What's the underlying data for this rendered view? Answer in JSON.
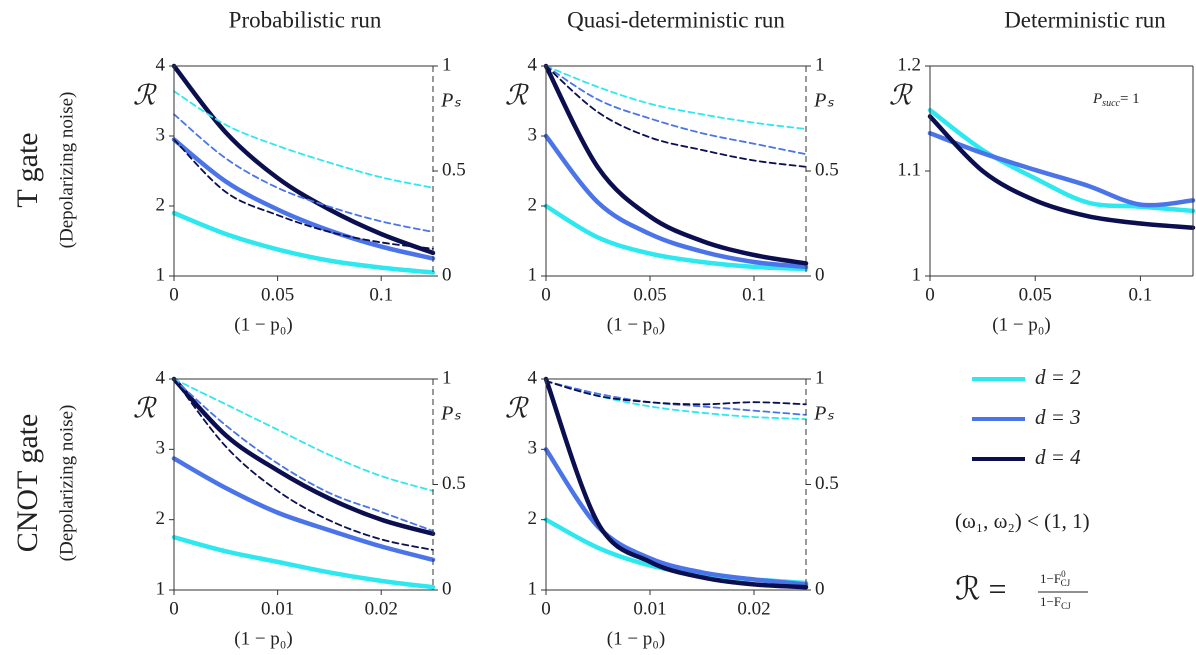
{
  "columns": [
    "Probabilistic run",
    "Quasi-deterministic run",
    "Deterministic run"
  ],
  "rows": [
    {
      "title": "T gate",
      "subtitle": "(Depolarizing noise)"
    },
    {
      "title": "CNOT gate",
      "subtitle": "(Depolarizing noise)"
    }
  ],
  "legend": [
    {
      "name": "d = 2",
      "color": "#2ee8f0"
    },
    {
      "name": "d = 3",
      "color": "#4a74e8"
    },
    {
      "name": "d = 4",
      "color": "#0b0f4f"
    }
  ],
  "condition": "(ω₁, ω₂) < (1, 1)",
  "formula": {
    "lhs": "ℛ =",
    "numerator": "1−F",
    "numerator_sup": "0",
    "numerator_sub": "CJ",
    "denominator": "1−F",
    "denominator_sub": "CJ"
  },
  "chart_data": [
    {
      "type": "line",
      "xlabel": "(1 − p₀)",
      "ylabel": "ℛ",
      "y2label": "Pₛ",
      "x": [
        0,
        0.025,
        0.05,
        0.075,
        0.1,
        0.125
      ],
      "xlim": [
        0,
        0.125
      ],
      "xticks": [
        0,
        0.05,
        0.1
      ],
      "ylim": [
        1,
        4
      ],
      "yticks": [
        1,
        2,
        3,
        4
      ],
      "y2lim": [
        0,
        1
      ],
      "y2ticks": [
        0,
        0.5,
        1
      ],
      "series": [
        {
          "color": "#2ee8f0",
          "values": [
            1.9,
            1.6,
            1.38,
            1.22,
            1.12,
            1.05
          ]
        },
        {
          "color": "#4a74e8",
          "values": [
            2.95,
            2.35,
            1.95,
            1.65,
            1.42,
            1.25
          ]
        },
        {
          "color": "#0b0f4f",
          "values": [
            4.0,
            3.05,
            2.4,
            1.95,
            1.6,
            1.33
          ]
        },
        {
          "color": "#2ee8f0",
          "axis": "y2",
          "values": [
            0.88,
            0.72,
            0.62,
            0.54,
            0.47,
            0.42
          ]
        },
        {
          "color": "#4a74e8",
          "axis": "y2",
          "values": [
            0.77,
            0.56,
            0.42,
            0.33,
            0.26,
            0.21
          ]
        },
        {
          "color": "#0b0f4f",
          "axis": "y2",
          "values": [
            0.65,
            0.4,
            0.29,
            0.21,
            0.16,
            0.13
          ]
        }
      ]
    },
    {
      "type": "line",
      "xlabel": "(1 − p₀)",
      "ylabel": "ℛ",
      "y2label": "Pₛ",
      "x": [
        0,
        0.025,
        0.05,
        0.075,
        0.1,
        0.125
      ],
      "xlim": [
        0,
        0.125
      ],
      "xticks": [
        0,
        0.05,
        0.1
      ],
      "ylim": [
        1,
        4
      ],
      "yticks": [
        1,
        2,
        3,
        4
      ],
      "y2lim": [
        0,
        1
      ],
      "y2ticks": [
        0,
        0.5,
        1
      ],
      "series": [
        {
          "color": "#2ee8f0",
          "values": [
            2.0,
            1.55,
            1.32,
            1.2,
            1.13,
            1.1
          ]
        },
        {
          "color": "#4a74e8",
          "values": [
            3.0,
            2.05,
            1.6,
            1.35,
            1.2,
            1.13
          ]
        },
        {
          "color": "#0b0f4f",
          "values": [
            4.0,
            2.55,
            1.85,
            1.5,
            1.3,
            1.18
          ]
        },
        {
          "color": "#2ee8f0",
          "axis": "y2",
          "values": [
            1.0,
            0.9,
            0.82,
            0.77,
            0.73,
            0.7
          ]
        },
        {
          "color": "#4a74e8",
          "axis": "y2",
          "values": [
            1.0,
            0.84,
            0.75,
            0.68,
            0.63,
            0.58
          ]
        },
        {
          "color": "#0b0f4f",
          "axis": "y2",
          "values": [
            1.0,
            0.78,
            0.66,
            0.6,
            0.55,
            0.52
          ]
        }
      ]
    },
    {
      "type": "line",
      "xlabel": "(1 − p₀)",
      "ylabel": "ℛ",
      "annotation": {
        "main": "P",
        "sub": "succ",
        "rest": "= 1"
      },
      "x": [
        0,
        0.025,
        0.05,
        0.075,
        0.1,
        0.125
      ],
      "xlim": [
        0,
        0.125
      ],
      "xticks": [
        0,
        0.05,
        0.1
      ],
      "ylim": [
        1,
        1.2
      ],
      "yticks": [
        1,
        1.1,
        1.2
      ],
      "series": [
        {
          "color": "#2ee8f0",
          "values": [
            1.158,
            1.12,
            1.093,
            1.07,
            1.066,
            1.062
          ]
        },
        {
          "color": "#4a74e8",
          "values": [
            1.136,
            1.117,
            1.101,
            1.086,
            1.068,
            1.072
          ]
        },
        {
          "color": "#0b0f4f",
          "values": [
            1.152,
            1.1,
            1.072,
            1.057,
            1.05,
            1.046
          ]
        }
      ]
    },
    {
      "type": "line",
      "xlabel": "(1 − p₀)",
      "ylabel": "ℛ",
      "y2label": "Pₛ",
      "x": [
        0,
        0.005,
        0.01,
        0.015,
        0.02,
        0.025
      ],
      "xlim": [
        0,
        0.025
      ],
      "xticks": [
        0,
        0.01,
        0.02
      ],
      "ylim": [
        1,
        4
      ],
      "yticks": [
        1,
        2,
        3,
        4
      ],
      "y2lim": [
        0,
        1
      ],
      "y2ticks": [
        0,
        0.5,
        1
      ],
      "series": [
        {
          "color": "#2ee8f0",
          "values": [
            1.75,
            1.55,
            1.4,
            1.25,
            1.13,
            1.04
          ]
        },
        {
          "color": "#4a74e8",
          "values": [
            2.87,
            2.45,
            2.1,
            1.85,
            1.62,
            1.43
          ]
        },
        {
          "color": "#0b0f4f",
          "values": [
            4.0,
            3.2,
            2.7,
            2.3,
            2.0,
            1.8
          ]
        },
        {
          "color": "#2ee8f0",
          "axis": "y2",
          "values": [
            1.0,
            0.88,
            0.76,
            0.64,
            0.54,
            0.47
          ]
        },
        {
          "color": "#4a74e8",
          "axis": "y2",
          "values": [
            1.0,
            0.78,
            0.6,
            0.46,
            0.37,
            0.28
          ]
        },
        {
          "color": "#0b0f4f",
          "axis": "y2",
          "values": [
            1.0,
            0.68,
            0.47,
            0.33,
            0.24,
            0.19
          ]
        }
      ]
    },
    {
      "type": "line",
      "xlabel": "(1 − p₀)",
      "ylabel": "ℛ",
      "y2label": "Pₛ",
      "x": [
        0,
        0.005,
        0.01,
        0.015,
        0.02,
        0.025
      ],
      "xlim": [
        0,
        0.025
      ],
      "xticks": [
        0,
        0.01,
        0.02
      ],
      "ylim": [
        1,
        4
      ],
      "yticks": [
        1,
        2,
        3,
        4
      ],
      "y2lim": [
        0,
        1
      ],
      "y2ticks": [
        0,
        0.5,
        1
      ],
      "series": [
        {
          "color": "#2ee8f0",
          "values": [
            2.0,
            1.6,
            1.35,
            1.22,
            1.15,
            1.1
          ]
        },
        {
          "color": "#4a74e8",
          "values": [
            3.0,
            1.9,
            1.45,
            1.25,
            1.15,
            1.08
          ]
        },
        {
          "color": "#0b0f4f",
          "values": [
            4.0,
            1.95,
            1.4,
            1.18,
            1.08,
            1.04
          ]
        },
        {
          "color": "#2ee8f0",
          "axis": "y2",
          "values": [
            0.99,
            0.92,
            0.87,
            0.84,
            0.82,
            0.81
          ]
        },
        {
          "color": "#4a74e8",
          "axis": "y2",
          "values": [
            0.99,
            0.93,
            0.89,
            0.87,
            0.85,
            0.83
          ]
        },
        {
          "color": "#0b0f4f",
          "axis": "y2",
          "values": [
            0.99,
            0.92,
            0.89,
            0.88,
            0.89,
            0.88
          ]
        }
      ]
    }
  ]
}
